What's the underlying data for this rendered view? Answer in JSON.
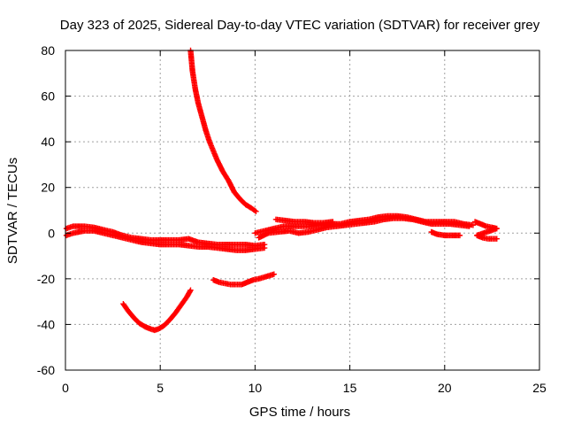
{
  "chart_data": {
    "type": "scatter",
    "title": "Day 323 of 2025, Sidereal Day-to-day VTEC variation (SDTVAR) for receiver grey",
    "xlabel": "GPS time / hours",
    "ylabel": "SDTVAR / TECUs",
    "xlim": [
      0,
      25
    ],
    "ylim": [
      -60,
      80
    ],
    "xticks": [
      0,
      5,
      10,
      15,
      20,
      25
    ],
    "yticks": [
      -60,
      -40,
      -20,
      0,
      20,
      40,
      60,
      80
    ],
    "x_tick_labels": [
      "0",
      "5",
      "10",
      "15",
      "20",
      "25"
    ],
    "y_tick_labels": [
      "-60",
      "-40",
      "-20",
      "0",
      "20",
      "40",
      "60",
      "80"
    ],
    "grid": true,
    "marker": "plus",
    "marker_color": "#ff0000",
    "series": [
      {
        "name": "main-band-upper",
        "points": [
          [
            0.05,
            2
          ],
          [
            0.4,
            3
          ],
          [
            1,
            3
          ],
          [
            1.5,
            2.5
          ],
          [
            2,
            1.5
          ],
          [
            2.5,
            0.5
          ],
          [
            3,
            -1
          ],
          [
            3.5,
            -2
          ],
          [
            4,
            -2.5
          ],
          [
            4.5,
            -3
          ],
          [
            5,
            -3
          ],
          [
            5.5,
            -3
          ],
          [
            6,
            -3
          ],
          [
            6.5,
            -2.5
          ],
          [
            7,
            -4
          ],
          [
            7.5,
            -4.5
          ],
          [
            8,
            -5
          ],
          [
            8.5,
            -5
          ],
          [
            9,
            -5
          ],
          [
            9.5,
            -5
          ],
          [
            10,
            -5.5
          ],
          [
            10.5,
            -5
          ]
        ]
      },
      {
        "name": "main-band-lower",
        "points": [
          [
            0.05,
            -1
          ],
          [
            0.4,
            0
          ],
          [
            1,
            1
          ],
          [
            1.5,
            1
          ],
          [
            2,
            0
          ],
          [
            2.5,
            -1
          ],
          [
            3,
            -2
          ],
          [
            3.5,
            -3
          ],
          [
            4,
            -4
          ],
          [
            4.5,
            -4.5
          ],
          [
            5,
            -5
          ],
          [
            5.5,
            -5
          ],
          [
            6,
            -5
          ],
          [
            6.5,
            -5.5
          ],
          [
            7,
            -6
          ],
          [
            7.5,
            -6
          ],
          [
            8,
            -6.5
          ],
          [
            8.5,
            -7
          ],
          [
            9,
            -7.5
          ],
          [
            9.5,
            -7.5
          ],
          [
            10,
            -7
          ],
          [
            10.5,
            -6.5
          ]
        ]
      },
      {
        "name": "steep-descending-arc",
        "points": [
          [
            6.6,
            80
          ],
          [
            6.7,
            71
          ],
          [
            6.85,
            63
          ],
          [
            7,
            57
          ],
          [
            7.2,
            51
          ],
          [
            7.4,
            45
          ],
          [
            7.6,
            40
          ],
          [
            7.8,
            36
          ],
          [
            8,
            32
          ],
          [
            8.3,
            27
          ],
          [
            8.6,
            23
          ],
          [
            8.9,
            18
          ],
          [
            9.2,
            15
          ],
          [
            9.5,
            12.5
          ],
          [
            9.8,
            11
          ],
          [
            10.05,
            9.5
          ]
        ]
      },
      {
        "name": "lower-u-curve",
        "points": [
          [
            3.05,
            -31
          ],
          [
            3.3,
            -34
          ],
          [
            3.6,
            -37
          ],
          [
            3.9,
            -39.5
          ],
          [
            4.2,
            -41
          ],
          [
            4.5,
            -42
          ],
          [
            4.7,
            -42.5
          ],
          [
            4.9,
            -42
          ],
          [
            5.2,
            -40.5
          ],
          [
            5.5,
            -38
          ],
          [
            5.8,
            -35
          ],
          [
            6.1,
            -31.5
          ],
          [
            6.4,
            -28
          ],
          [
            6.6,
            -25
          ]
        ]
      },
      {
        "name": "mid-negative-arc",
        "points": [
          [
            7.8,
            -20.5
          ],
          [
            8.1,
            -21.5
          ],
          [
            8.4,
            -22
          ],
          [
            8.7,
            -22.5
          ],
          [
            9,
            -22.5
          ],
          [
            9.3,
            -22.5
          ],
          [
            9.6,
            -21.5
          ],
          [
            9.9,
            -20.5
          ],
          [
            10.2,
            -20
          ],
          [
            10.6,
            -19
          ],
          [
            11,
            -18
          ]
        ]
      },
      {
        "name": "afternoon-band",
        "points": [
          [
            10,
            0
          ],
          [
            10.5,
            1
          ],
          [
            11,
            2
          ],
          [
            11.5,
            3
          ],
          [
            12,
            3
          ],
          [
            12.5,
            3
          ],
          [
            13,
            3
          ],
          [
            13.5,
            3.5
          ],
          [
            14,
            4
          ],
          [
            14.5,
            4
          ],
          [
            15,
            5
          ],
          [
            15.5,
            5.5
          ],
          [
            16,
            6
          ],
          [
            16.5,
            7
          ],
          [
            17,
            7.5
          ],
          [
            17.5,
            7.5
          ],
          [
            18,
            7
          ],
          [
            18.5,
            6
          ],
          [
            19,
            5
          ],
          [
            19.5,
            5
          ],
          [
            20,
            5
          ],
          [
            20.5,
            5
          ],
          [
            21,
            4
          ],
          [
            21.5,
            3.5
          ]
        ]
      },
      {
        "name": "afternoon-band-lower",
        "points": [
          [
            10.2,
            -2
          ],
          [
            10.7,
            0
          ],
          [
            11.2,
            0.5
          ],
          [
            11.8,
            1
          ],
          [
            12.3,
            0
          ],
          [
            12.8,
            0.5
          ],
          [
            13.3,
            1.5
          ],
          [
            13.8,
            2.5
          ],
          [
            14.3,
            3
          ],
          [
            14.8,
            3.5
          ],
          [
            15.3,
            4
          ],
          [
            15.8,
            4.5
          ],
          [
            16.3,
            5
          ],
          [
            16.8,
            6
          ],
          [
            17.3,
            6.5
          ],
          [
            17.8,
            6.5
          ],
          [
            18.3,
            6
          ],
          [
            18.8,
            5
          ],
          [
            19.3,
            4
          ],
          [
            19.8,
            4
          ],
          [
            20.3,
            4
          ],
          [
            20.8,
            3.5
          ],
          [
            21.3,
            3
          ]
        ]
      },
      {
        "name": "upper-spur",
        "points": [
          [
            11.1,
            6
          ],
          [
            11.6,
            5.5
          ],
          [
            12.1,
            5
          ],
          [
            12.6,
            5
          ],
          [
            13.1,
            4.5
          ],
          [
            13.6,
            4.5
          ],
          [
            14.1,
            5
          ]
        ]
      },
      {
        "name": "dip-segment",
        "points": [
          [
            19.3,
            0.5
          ],
          [
            19.6,
            -0.5
          ],
          [
            20,
            -1
          ],
          [
            20.4,
            -1
          ],
          [
            20.8,
            -1
          ]
        ]
      },
      {
        "name": "end-segment",
        "points": [
          [
            21.6,
            5
          ],
          [
            21.9,
            4
          ],
          [
            22.2,
            3
          ],
          [
            22.5,
            2.5
          ],
          [
            22.75,
            2
          ],
          [
            21.7,
            -1
          ],
          [
            22,
            -2
          ],
          [
            22.3,
            -2.5
          ],
          [
            22.6,
            -2.5
          ],
          [
            22.75,
            -2.5
          ]
        ]
      }
    ]
  }
}
